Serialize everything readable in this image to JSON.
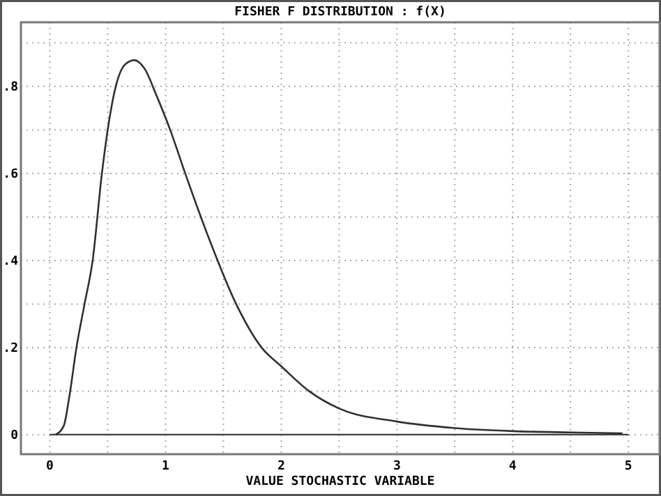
{
  "chart_data": {
    "type": "line",
    "title": "FISHER F DISTRIBUTION : f(X)",
    "xlabel": "VALUE STOCHASTIC VARIABLE",
    "series": [
      {
        "color": "#303030",
        "x": [
          0.05,
          0.12,
          0.17,
          0.23,
          0.3,
          0.37,
          0.45,
          0.5,
          0.57,
          0.65,
          0.73,
          0.82,
          0.92,
          1.04,
          1.17,
          1.37,
          1.61,
          1.83,
          2.0,
          2.24,
          2.5,
          3.0,
          3.5,
          4.0,
          4.5,
          4.95
        ],
        "values": [
          0,
          0.02,
          0.09,
          0.2,
          0.3,
          0.4,
          0.6,
          0.7,
          0.8,
          0.85,
          0.86,
          0.84,
          0.78,
          0.7,
          0.6,
          0.454,
          0.3,
          0.2,
          0.157,
          0.1,
          0.06,
          0.03,
          0.015,
          0.008,
          0.005,
          0.003
        ]
      }
    ],
    "xlim": [
      -0.25,
      5.27
    ],
    "ylim": [
      -0.045,
      0.947
    ],
    "xticks": [
      0,
      {
        "value": 0.5,
        "label": null
      },
      1,
      {
        "value": 1.5,
        "label": null
      },
      2,
      {
        "value": 2.5,
        "label": null
      },
      3,
      {
        "value": 3.5,
        "label": null
      },
      4,
      {
        "value": 4.5,
        "label": null
      },
      5
    ],
    "yticks": [
      {
        "value": 0,
        "label": "0"
      },
      {
        "value": 0.1,
        "label": null
      },
      {
        "value": 0.2,
        "label": ".2"
      },
      {
        "value": 0.3,
        "label": null
      },
      {
        "value": 0.4,
        "label": ".4"
      },
      {
        "value": 0.5,
        "label": null
      },
      {
        "value": 0.6,
        "label": ".6"
      },
      {
        "value": 0.7,
        "label": null
      },
      {
        "value": 0.8,
        "label": ".8"
      },
      {
        "value": 0.9,
        "label": null
      }
    ],
    "grid": true,
    "line_style": "solid",
    "marker": "none",
    "ref_lines": [
      {
        "axis": "y",
        "value": 0,
        "color": "#404040"
      }
    ]
  }
}
